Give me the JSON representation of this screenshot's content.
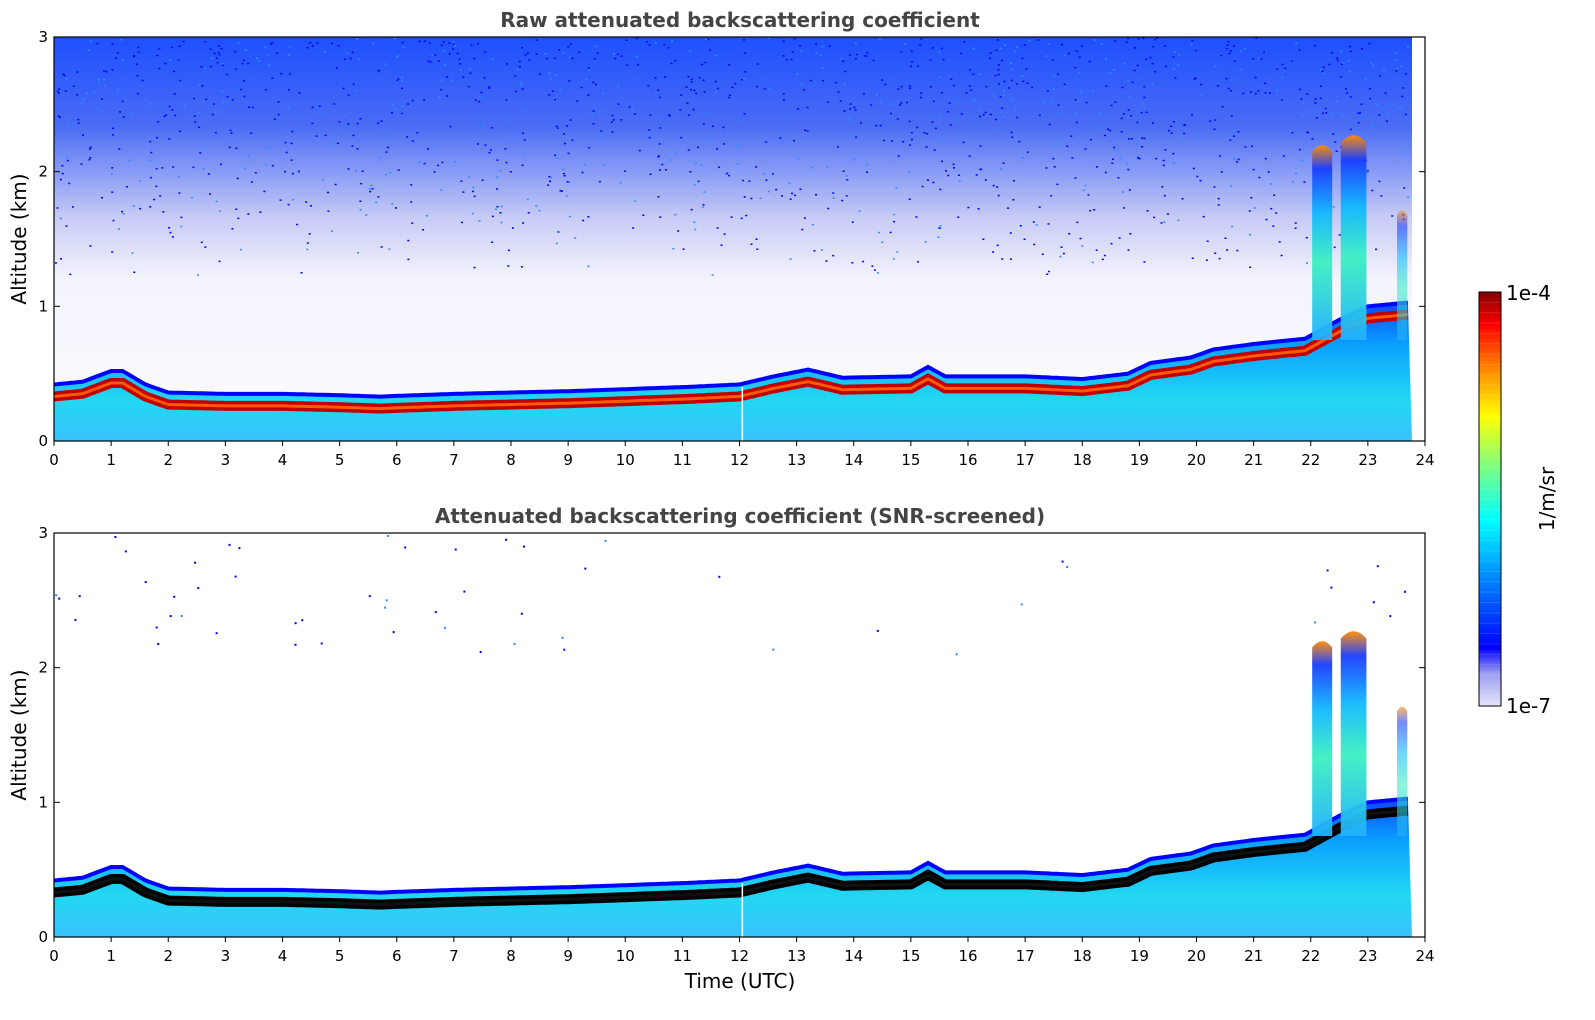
{
  "chart_data": [
    {
      "type": "heatmap",
      "title": "Raw attenuated backscattering coefficient",
      "xlabel": "",
      "ylabel": "Altitude (km)",
      "xlim": [
        0,
        24
      ],
      "ylim": [
        0,
        3
      ],
      "xticks": [
        "0",
        "1",
        "2",
        "3",
        "4",
        "5",
        "6",
        "7",
        "8",
        "9",
        "10",
        "11",
        "12",
        "13",
        "14",
        "15",
        "16",
        "17",
        "18",
        "19",
        "20",
        "21",
        "22",
        "23",
        "24"
      ],
      "yticks": [
        "0",
        "1",
        "2",
        "3"
      ],
      "screened": false
    },
    {
      "type": "heatmap",
      "title": "Attenuated backscattering coefficient (SNR-screened)",
      "xlabel": "Time (UTC)",
      "ylabel": "Altitude (km)",
      "xlim": [
        0,
        24
      ],
      "ylim": [
        0,
        3
      ],
      "xticks": [
        "0",
        "1",
        "2",
        "3",
        "4",
        "5",
        "6",
        "7",
        "8",
        "9",
        "10",
        "11",
        "12",
        "13",
        "14",
        "15",
        "16",
        "17",
        "18",
        "19",
        "20",
        "21",
        "22",
        "23",
        "24"
      ],
      "yticks": [
        "0",
        "1",
        "2",
        "3"
      ],
      "screened": true
    }
  ],
  "colorbar": {
    "label": "1/m/sr",
    "max_label": "1e-4",
    "min_label": "1e-7",
    "colors": [
      "#e6e6fa",
      "#7b68ee",
      "#0000ff",
      "#0080ff",
      "#00ffff",
      "#7fff7f",
      "#ffff00",
      "#ff8000",
      "#ff0000",
      "#800000"
    ]
  },
  "layer_top_km": [
    [
      0,
      0.42
    ],
    [
      0.5,
      0.44
    ],
    [
      1.0,
      0.52
    ],
    [
      1.2,
      0.52
    ],
    [
      1.6,
      0.42
    ],
    [
      2.0,
      0.36
    ],
    [
      3.0,
      0.35
    ],
    [
      4.0,
      0.35
    ],
    [
      5.0,
      0.34
    ],
    [
      5.7,
      0.33
    ],
    [
      7.0,
      0.35
    ],
    [
      9.0,
      0.37
    ],
    [
      11.0,
      0.4
    ],
    [
      12.0,
      0.42
    ],
    [
      12.6,
      0.48
    ],
    [
      13.2,
      0.53
    ],
    [
      13.8,
      0.47
    ],
    [
      15.0,
      0.48
    ],
    [
      15.3,
      0.55
    ],
    [
      15.6,
      0.48
    ],
    [
      17.0,
      0.48
    ],
    [
      18.0,
      0.46
    ],
    [
      18.8,
      0.5
    ],
    [
      19.2,
      0.58
    ],
    [
      19.9,
      0.62
    ],
    [
      20.3,
      0.68
    ],
    [
      21.0,
      0.72
    ],
    [
      21.9,
      0.76
    ],
    [
      22.5,
      0.9
    ],
    [
      23.0,
      1.0
    ],
    [
      23.75,
      1.03
    ]
  ]
}
